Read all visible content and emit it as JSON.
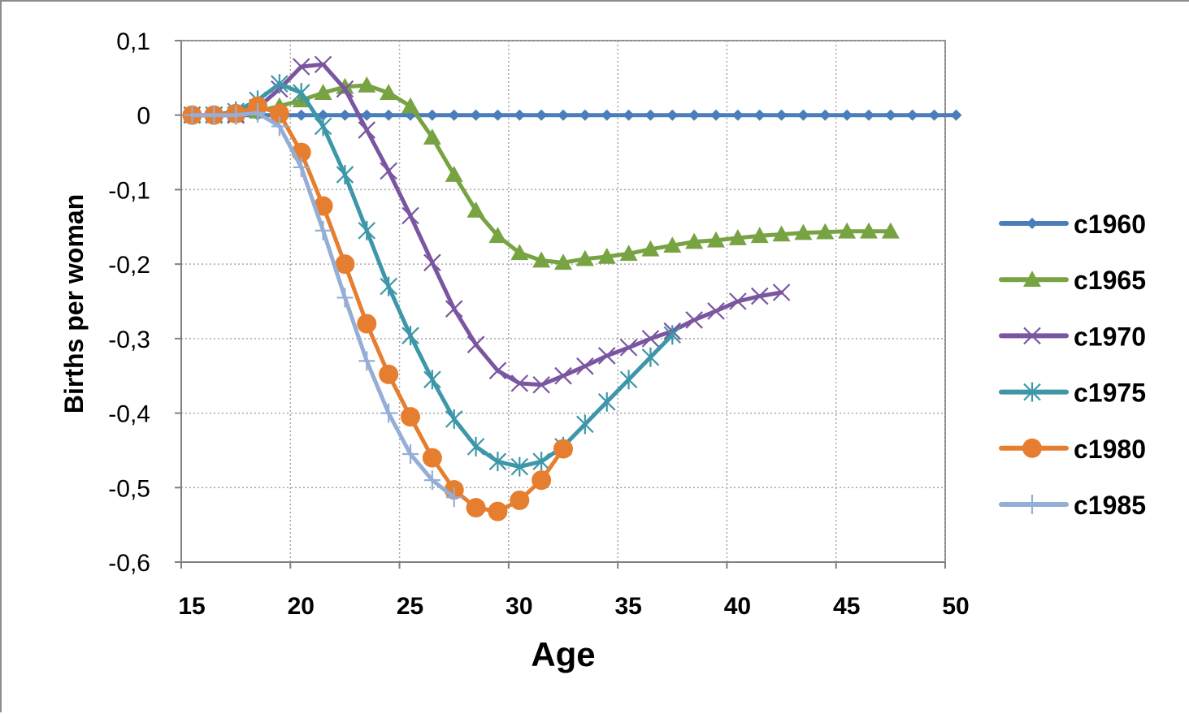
{
  "chart_data": {
    "type": "line",
    "title": "",
    "xlabel": "Age",
    "ylabel": "Births per woman",
    "xlim": [
      15,
      50
    ],
    "ylim": [
      -0.6,
      0.1
    ],
    "xticks": [
      15,
      20,
      25,
      30,
      35,
      40,
      45,
      50
    ],
    "xtick_labels": [
      "15",
      "20",
      "25",
      "30",
      "35",
      "40",
      "45",
      "50"
    ],
    "yticks": [
      0.1,
      0,
      -0.1,
      -0.2,
      -0.3,
      -0.4,
      -0.5,
      -0.6
    ],
    "ytick_labels": [
      "0,1",
      "0",
      "-0,1",
      "-0,2",
      "-0,3",
      "-0,4",
      "-0,5",
      "-0,6"
    ],
    "grid": true,
    "legend_position": "right",
    "series": [
      {
        "name": "c1960",
        "color": "#4a7ebb",
        "marker": "diamond",
        "x": [
          15.5,
          16.5,
          17.5,
          18.5,
          19.5,
          20.5,
          21.5,
          22.5,
          23.5,
          24.5,
          25.5,
          26.5,
          27.5,
          28.5,
          29.5,
          30.5,
          31.5,
          32.5,
          33.5,
          34.5,
          35.5,
          36.5,
          37.5,
          38.5,
          39.5,
          40.5,
          41.5,
          42.5,
          43.5,
          44.5,
          45.5,
          46.5,
          47.5,
          48.5,
          49.5,
          50.5
        ],
        "y": [
          0,
          0,
          0,
          0,
          0,
          0,
          0,
          0,
          0,
          0,
          0,
          0,
          0,
          0,
          0,
          0,
          0,
          0,
          0,
          0,
          0,
          0,
          0,
          0,
          0,
          0,
          0,
          0,
          0,
          0,
          0,
          0,
          0,
          0,
          0,
          0
        ]
      },
      {
        "name": "c1965",
        "color": "#77a342",
        "marker": "triangle",
        "x": [
          15.5,
          16.5,
          17.5,
          18.5,
          19.5,
          20.5,
          21.5,
          22.5,
          23.5,
          24.5,
          25.5,
          26.5,
          27.5,
          28.5,
          29.5,
          30.5,
          31.5,
          32.5,
          33.5,
          34.5,
          35.5,
          36.5,
          37.5,
          38.5,
          39.5,
          40.5,
          41.5,
          42.5,
          43.5,
          44.5,
          45.5,
          46.5,
          47.5
        ],
        "y": [
          0,
          0,
          0,
          0.005,
          0.012,
          0.02,
          0.03,
          0.038,
          0.04,
          0.03,
          0.012,
          -0.03,
          -0.08,
          -0.128,
          -0.162,
          -0.185,
          -0.195,
          -0.198,
          -0.193,
          -0.19,
          -0.186,
          -0.18,
          -0.175,
          -0.17,
          -0.168,
          -0.165,
          -0.162,
          -0.16,
          -0.158,
          -0.157,
          -0.156,
          -0.156,
          -0.156
        ]
      },
      {
        "name": "c1970",
        "color": "#7a55a0",
        "marker": "x",
        "x": [
          15.5,
          16.5,
          17.5,
          18.5,
          19.5,
          20.5,
          21.5,
          22.5,
          23.5,
          24.5,
          25.5,
          26.5,
          27.5,
          28.5,
          29.5,
          30.5,
          31.5,
          32.5,
          33.5,
          34.5,
          35.5,
          36.5,
          37.5,
          38.5,
          39.5,
          40.5,
          41.5,
          42.5
        ],
        "y": [
          0,
          0,
          0,
          0.01,
          0.035,
          0.065,
          0.068,
          0.035,
          -0.02,
          -0.075,
          -0.135,
          -0.198,
          -0.26,
          -0.308,
          -0.343,
          -0.36,
          -0.362,
          -0.35,
          -0.337,
          -0.323,
          -0.312,
          -0.3,
          -0.29,
          -0.275,
          -0.263,
          -0.25,
          -0.243,
          -0.238
        ]
      },
      {
        "name": "c1975",
        "color": "#3d97a8",
        "marker": "star",
        "x": [
          15.5,
          16.5,
          17.5,
          18.5,
          19.5,
          20.5,
          21.5,
          22.5,
          23.5,
          24.5,
          25.5,
          26.5,
          27.5,
          28.5,
          29.5,
          30.5,
          31.5,
          32.5,
          33.5,
          34.5,
          35.5,
          36.5,
          37.5
        ],
        "y": [
          0,
          0,
          0.005,
          0.02,
          0.042,
          0.03,
          -0.015,
          -0.08,
          -0.155,
          -0.23,
          -0.296,
          -0.355,
          -0.408,
          -0.445,
          -0.465,
          -0.472,
          -0.465,
          -0.445,
          -0.415,
          -0.385,
          -0.355,
          -0.325,
          -0.295
        ]
      },
      {
        "name": "c1980",
        "color": "#e67e30",
        "marker": "circle",
        "x": [
          15.5,
          16.5,
          17.5,
          18.5,
          19.5,
          20.5,
          21.5,
          22.5,
          23.5,
          24.5,
          25.5,
          26.5,
          27.5,
          28.5,
          29.5,
          30.5,
          31.5,
          32.5
        ],
        "y": [
          0,
          0,
          0.002,
          0.012,
          0.002,
          -0.05,
          -0.122,
          -0.2,
          -0.28,
          -0.348,
          -0.405,
          -0.46,
          -0.503,
          -0.527,
          -0.532,
          -0.517,
          -0.49,
          -0.448
        ]
      },
      {
        "name": "c1985",
        "color": "#94aed8",
        "marker": "plus",
        "x": [
          15.5,
          16.5,
          17.5,
          18.5,
          19.5,
          20.5,
          21.5,
          22.5,
          23.5,
          24.5,
          25.5,
          26.5,
          27.5
        ],
        "y": [
          0,
          0,
          0,
          0.003,
          -0.015,
          -0.07,
          -0.155,
          -0.245,
          -0.33,
          -0.4,
          -0.455,
          -0.49,
          -0.513
        ]
      }
    ]
  }
}
